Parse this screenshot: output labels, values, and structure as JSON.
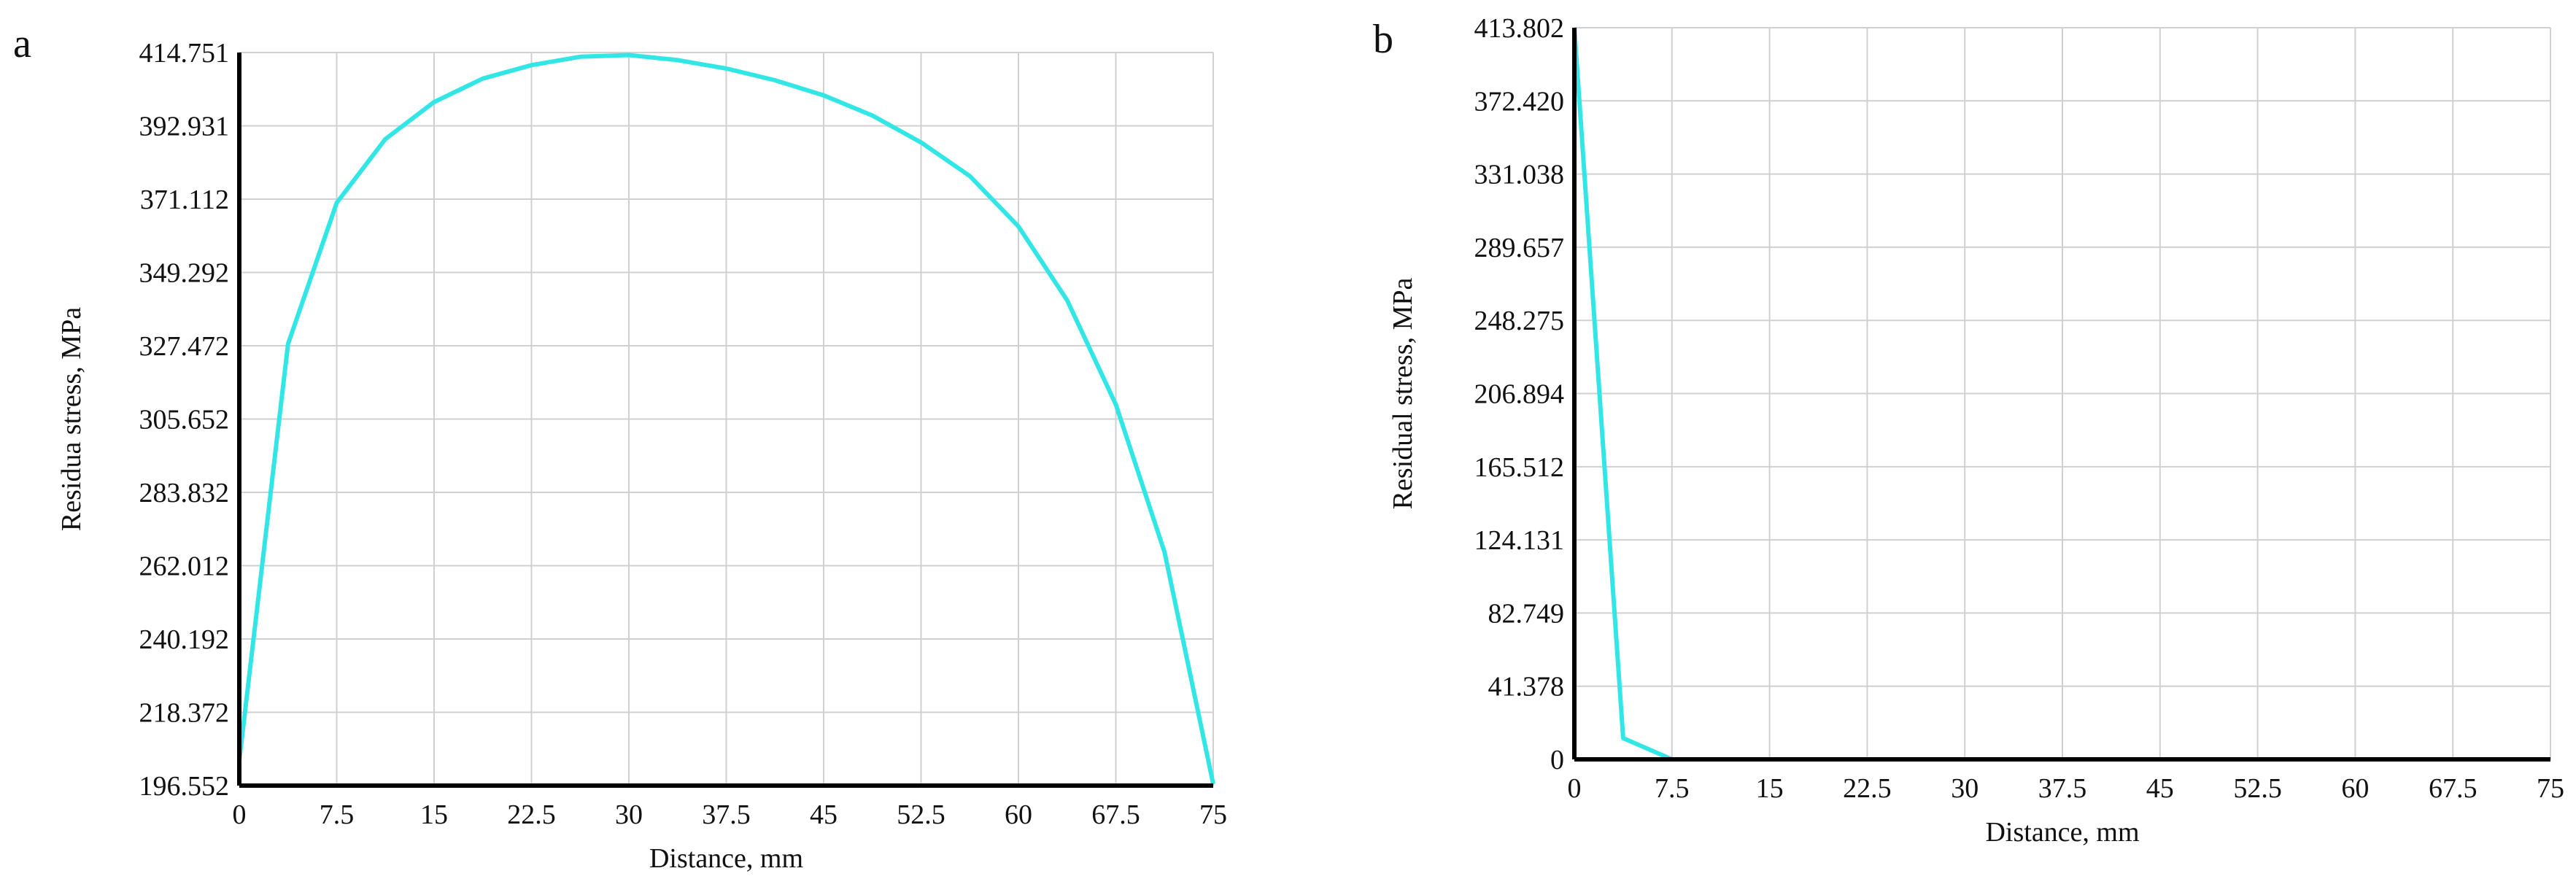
{
  "chart_data": [
    {
      "type": "line",
      "panel_label": "a",
      "xlabel": "Distance, mm",
      "ylabel": "Residua stress,  MPa",
      "xlim": [
        0,
        75
      ],
      "ylim": [
        196.552,
        414.751
      ],
      "x_ticks": [
        "0",
        "7.5",
        "15",
        "22.5",
        "30",
        "37.5",
        "45",
        "52.5",
        "60",
        "67.5",
        "75"
      ],
      "x_tick_values": [
        0,
        7.5,
        15,
        22.5,
        30,
        37.5,
        45,
        52.5,
        60,
        67.5,
        75
      ],
      "y_ticks": [
        "196.552",
        "218.372",
        "240.192",
        "262.012",
        "283.832",
        "305.652",
        "327.472",
        "349.292",
        "371.112",
        "392.931",
        "414.751"
      ],
      "y_tick_values": [
        196.552,
        218.372,
        240.192,
        262.012,
        283.832,
        305.652,
        327.472,
        349.292,
        371.112,
        392.931,
        414.751
      ],
      "grid": true,
      "line_color": "#33e6e6",
      "series": [
        {
          "x": [
            0,
            3.75,
            7.5,
            11.25,
            15,
            18.75,
            22.5,
            26.25,
            30,
            33.75,
            37.5,
            41.25,
            45,
            48.75,
            52.5,
            56.25,
            60,
            63.75,
            67.5,
            71.25,
            75
          ],
          "y": [
            204,
            328,
            370,
            389,
            400,
            407,
            411,
            413.5,
            414,
            412.5,
            410,
            406.5,
            402,
            396,
            388,
            378,
            363,
            341,
            310,
            266,
            197
          ]
        }
      ]
    },
    {
      "type": "line",
      "panel_label": "b",
      "xlabel": "Distance, mm",
      "ylabel": "Residual stress, MPa",
      "xlim": [
        0,
        75
      ],
      "ylim": [
        0,
        413.802
      ],
      "x_ticks": [
        "0",
        "7.5",
        "15",
        "22.5",
        "30",
        "37.5",
        "45",
        "52.5",
        "60",
        "67.5",
        "75"
      ],
      "x_tick_values": [
        0,
        7.5,
        15,
        22.5,
        30,
        37.5,
        45,
        52.5,
        60,
        67.5,
        75
      ],
      "y_ticks": [
        "0",
        "41.378",
        "82.749",
        "124.131",
        "165.512",
        "206.894",
        "248.275",
        "289.657",
        "331.038",
        "372.420",
        "413.802"
      ],
      "y_tick_values": [
        0,
        41.378,
        82.749,
        124.131,
        165.512,
        206.894,
        248.275,
        289.657,
        331.038,
        372.42,
        413.802
      ],
      "grid": true,
      "line_color": "#33e6e6",
      "series": [
        {
          "x": [
            0,
            3.75,
            7.5,
            11.25,
            15,
            18.75,
            22.5,
            26.25,
            30,
            33.75,
            37.5,
            41.25,
            45,
            48.75,
            52.5,
            56.25,
            60,
            63.75,
            67.5,
            71.25,
            75
          ],
          "y": [
            413.8,
            12,
            0,
            0,
            0,
            0,
            0,
            0,
            0,
            0,
            0,
            0,
            0,
            0,
            0,
            0,
            0,
            0,
            0,
            0,
            0
          ]
        }
      ]
    }
  ]
}
